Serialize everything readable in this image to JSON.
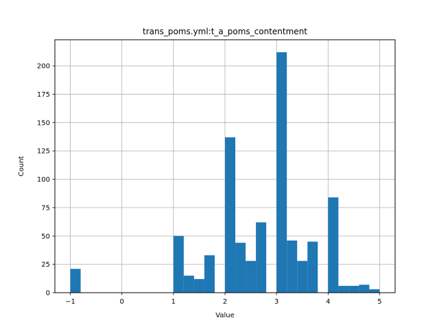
{
  "chart_data": {
    "type": "bar",
    "title": "trans_poms.yml:t_a_poms_contentment",
    "xlabel": "Value",
    "ylabel": "Count",
    "xlim": [
      -1.3,
      5.3
    ],
    "ylim": [
      0,
      223
    ],
    "grid": true,
    "bar_color": "#1f77b4",
    "x_ticks": [
      -1,
      0,
      1,
      2,
      3,
      4,
      5
    ],
    "y_ticks": [
      0,
      25,
      50,
      75,
      100,
      125,
      150,
      175,
      200
    ],
    "bin_width": 0.2,
    "bins": [
      {
        "x0": -1.0,
        "value": 21
      },
      {
        "x0": 1.0,
        "value": 50
      },
      {
        "x0": 1.2,
        "value": 15
      },
      {
        "x0": 1.4,
        "value": 12
      },
      {
        "x0": 1.6,
        "value": 33
      },
      {
        "x0": 2.0,
        "value": 137
      },
      {
        "x0": 2.2,
        "value": 44
      },
      {
        "x0": 2.4,
        "value": 28
      },
      {
        "x0": 2.6,
        "value": 62
      },
      {
        "x0": 3.0,
        "value": 212
      },
      {
        "x0": 3.2,
        "value": 46
      },
      {
        "x0": 3.4,
        "value": 28
      },
      {
        "x0": 3.6,
        "value": 45
      },
      {
        "x0": 4.0,
        "value": 84
      },
      {
        "x0": 4.2,
        "value": 6
      },
      {
        "x0": 4.4,
        "value": 6
      },
      {
        "x0": 4.6,
        "value": 7
      },
      {
        "x0": 4.8,
        "value": 3
      }
    ]
  }
}
